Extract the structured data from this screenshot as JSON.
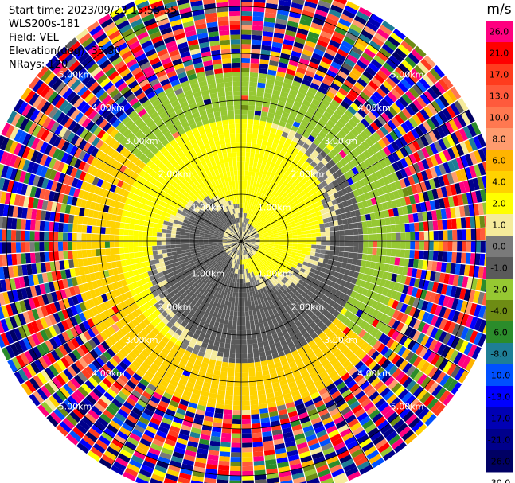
{
  "info": {
    "start_time": "Start time: 2023/09/23 15:55:55",
    "instrument": "WLS200s-181",
    "field": "Field: VEL",
    "elevation": "Elevation(deg): 35.30",
    "nrays": "NRays: 120"
  },
  "colorbar": {
    "unit": "m/s",
    "tick_labels": [
      "26.0",
      "21.0",
      "17.0",
      "13.0",
      "10.0",
      "8.0",
      "6.0",
      "4.0",
      "2.0",
      "1.0",
      "0.0",
      "-1.0",
      "-2.0",
      "-4.0",
      "-6.0",
      "-8.0",
      "-10.0",
      "-13.0",
      "-17.0",
      "-21.0",
      "-26.0",
      "-30.0"
    ],
    "colors": [
      "#ff007f",
      "#ff0000",
      "#ff3c1e",
      "#ff5a3c",
      "#ff7850",
      "#ff9b6e",
      "#ffb400",
      "#ffd200",
      "#ffff00",
      "#f5eb9b",
      "#7a7a7a",
      "#5a5a5a",
      "#96c832",
      "#6e8c14",
      "#2b8c2b",
      "#1e7e96",
      "#0050ff",
      "#0000ff",
      "#0000b4",
      "#00008c",
      "#000064"
    ]
  },
  "chart_data": {
    "type": "ppi",
    "field": "VEL",
    "units": "m/s",
    "n_rays": 120,
    "elevation_deg": 35.3,
    "range_rings_km": [
      1.0,
      2.0,
      3.0,
      4.0,
      5.0
    ],
    "ring_labels": [
      "1.00km",
      "2.00km",
      "3.00km",
      "4.00km",
      "5.00km"
    ],
    "spoke_angles_deg": [
      0,
      30,
      60,
      90,
      120,
      150,
      180,
      210,
      240,
      270,
      300,
      330
    ],
    "max_range_km": 5.6,
    "regions": [
      {
        "range_km": [
          0.0,
          2.5
        ],
        "description": "near-zero velocities, yellow and grey swirl",
        "values_ms": [
          -1.0,
          2.0
        ]
      },
      {
        "range_km": [
          1.5,
          3.6
        ],
        "description": "north-west half positive (yellow), south-east half negative (green)",
        "values_ms": [
          -4.0,
          4.0
        ]
      },
      {
        "range_km": [
          3.6,
          5.6
        ],
        "description": "noise, full color range",
        "values_ms": [
          -30.0,
          26.0
        ]
      }
    ]
  }
}
